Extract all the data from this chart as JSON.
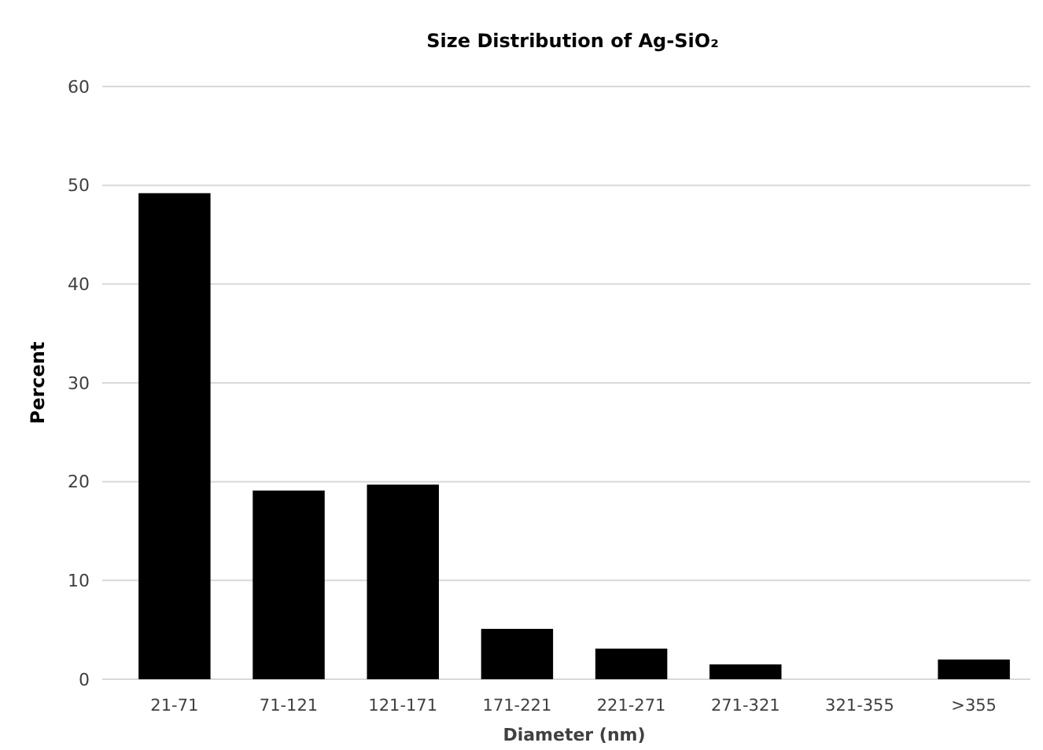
{
  "chart_data": {
    "type": "bar",
    "title": "Size Distribution of Ag-SiO₂",
    "xlabel": "Diameter (nm)",
    "ylabel": "Percent",
    "categories": [
      "21-71",
      "71-121",
      "121-171",
      "171-221",
      "221-271",
      "271-321",
      "321-355",
      ">355"
    ],
    "values": [
      49.2,
      19.1,
      19.7,
      5.1,
      3.1,
      1.5,
      0,
      2.0
    ],
    "color": "#000000",
    "ylim": [
      0,
      60
    ],
    "yticks": [
      0,
      10,
      20,
      30,
      40,
      50,
      60
    ],
    "grid": "y"
  }
}
